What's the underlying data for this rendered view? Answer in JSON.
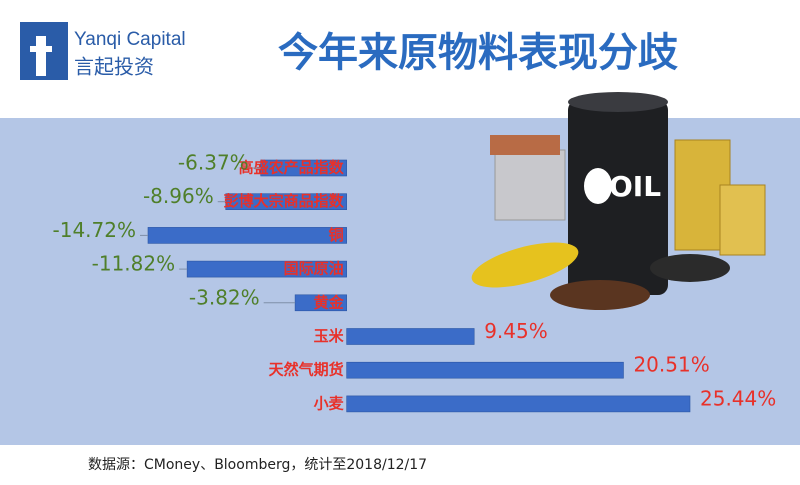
{
  "logo": {
    "name": "Yanqi Capital",
    "chinese_name": "言起投资"
  },
  "chart_data": {
    "type": "bar",
    "orientation": "horizontal",
    "title": "今年来原物料表现分歧",
    "categories": [
      "高盛农产品指数",
      "彭博大宗商品指数",
      "铜",
      "国际原油",
      "黄金",
      "玉米",
      "天然气期货",
      "小麦"
    ],
    "values": [
      -6.37,
      -8.96,
      -14.72,
      -11.82,
      -3.82,
      9.45,
      20.51,
      25.44
    ],
    "value_labels": [
      "-6.37%",
      "-8.96%",
      "-14.72%",
      "-11.82%",
      "-3.82%",
      "9.45%",
      "20.51%",
      "25.44%"
    ],
    "color": "#3b6cc8",
    "category_label_color": "#e8312a",
    "negative_label_color": "#4f7f2a",
    "positive_label_color": "#e8312a"
  },
  "illustration_text": "OIL",
  "footer": {
    "source": "数据源：CMoney、Bloomberg，统计至2018/12/17"
  }
}
